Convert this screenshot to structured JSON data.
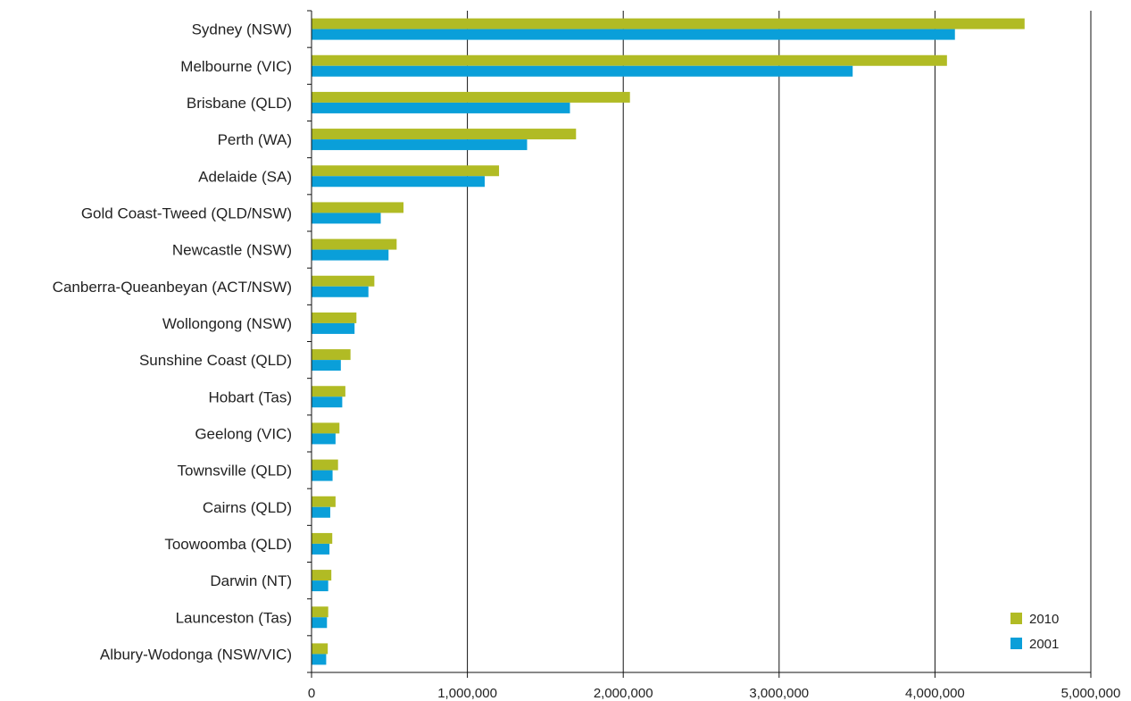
{
  "chart_data": {
    "type": "bar",
    "orientation": "horizontal",
    "categories": [
      "Sydney (NSW)",
      "Melbourne (VIC)",
      "Brisbane (QLD)",
      "Perth (WA)",
      "Adelaide (SA)",
      "Gold Coast-Tweed (QLD/NSW)",
      "Newcastle (NSW)",
      "Canberra-Queanbeyan (ACT/NSW)",
      "Wollongong (NSW)",
      "Sunshine Coast (QLD)",
      "Hobart (Tas)",
      "Geelong (VIC)",
      "Townsville (QLD)",
      "Cairns (QLD)",
      "Toowoomba (QLD)",
      "Darwin (NT)",
      "Launceston (Tas)",
      "Albury-Wodonga (NSW/VIC)"
    ],
    "series": [
      {
        "name": "2010",
        "color": "#b1bb24",
        "values": [
          4575000,
          4077000,
          2043000,
          1697000,
          1203000,
          590000,
          546000,
          403000,
          288000,
          250000,
          217000,
          179000,
          170000,
          154000,
          133000,
          127000,
          107000,
          104000
        ]
      },
      {
        "name": "2001",
        "color": "#0a9fd9",
        "values": [
          4128000,
          3472000,
          1658000,
          1383000,
          1111000,
          444000,
          494000,
          365000,
          276000,
          188000,
          197000,
          154000,
          135000,
          120000,
          115000,
          107000,
          99000,
          94000
        ]
      }
    ],
    "xlim": [
      0,
      5000000
    ],
    "x_ticks": [
      "0",
      "1,000,000",
      "2,000,000",
      "3,000,000",
      "4,000,000",
      "5,000,000"
    ],
    "x_tick_values": [
      0,
      1000000,
      2000000,
      3000000,
      4000000,
      5000000
    ],
    "grid": "vertical",
    "legend_position": "bottom-right",
    "title": "",
    "xlabel": "",
    "ylabel": ""
  }
}
